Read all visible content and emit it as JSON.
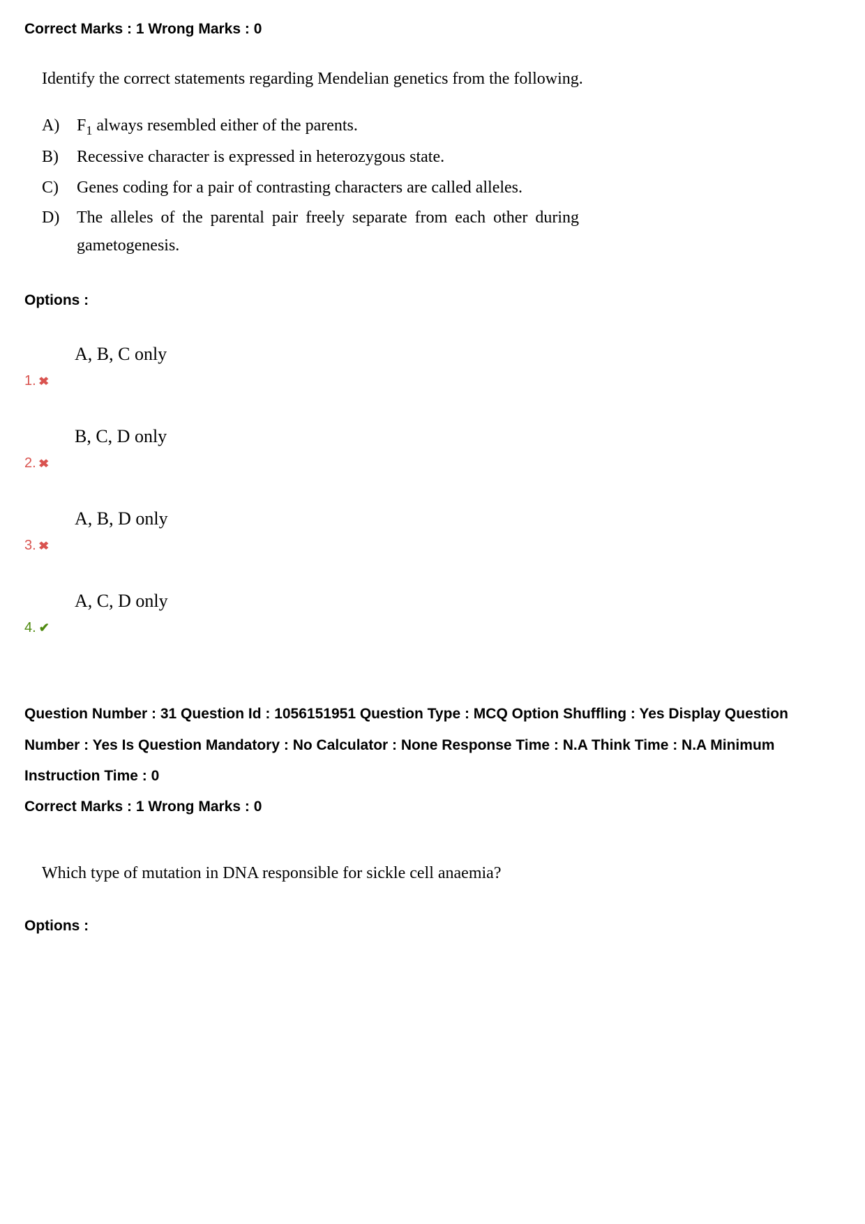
{
  "q1": {
    "marks_line": "Correct Marks : 1 Wrong Marks : 0",
    "stem": "Identify the correct statements regarding Mendelian genetics from the following.",
    "statements": {
      "A": {
        "label": "A)",
        "text_pre": "F",
        "sub": "1",
        "text_post": " always resembled either of the parents."
      },
      "B": {
        "label": "B)",
        "text": "Recessive character is expressed in heterozygous state."
      },
      "C": {
        "label": "C)",
        "text": "Genes coding for a pair of contrasting characters are called alleles."
      },
      "D": {
        "label": "D)",
        "text": "The alleles of the parental pair freely separate from each other during gametogenesis."
      }
    },
    "options_label": "Options :",
    "options": {
      "o1": {
        "num": "1.",
        "text": "A, B, C only",
        "correct": false
      },
      "o2": {
        "num": "2.",
        "text": "B, C, D only",
        "correct": false
      },
      "o3": {
        "num": "3.",
        "text": "A, B, D only",
        "correct": false
      },
      "o4": {
        "num": "4.",
        "text": "A, C, D only",
        "correct": true
      }
    }
  },
  "q2": {
    "meta": "Question Number : 31 Question Id : 1056151951 Question Type : MCQ Option Shuffling : Yes Display Question Number : Yes Is Question Mandatory : No Calculator : None Response Time : N.A Think Time : N.A Minimum Instruction Time : 0",
    "marks_line": "Correct Marks : 1 Wrong Marks : 0",
    "stem": "Which type of mutation in DNA responsible for sickle cell anaemia?",
    "options_label": "Options :"
  }
}
